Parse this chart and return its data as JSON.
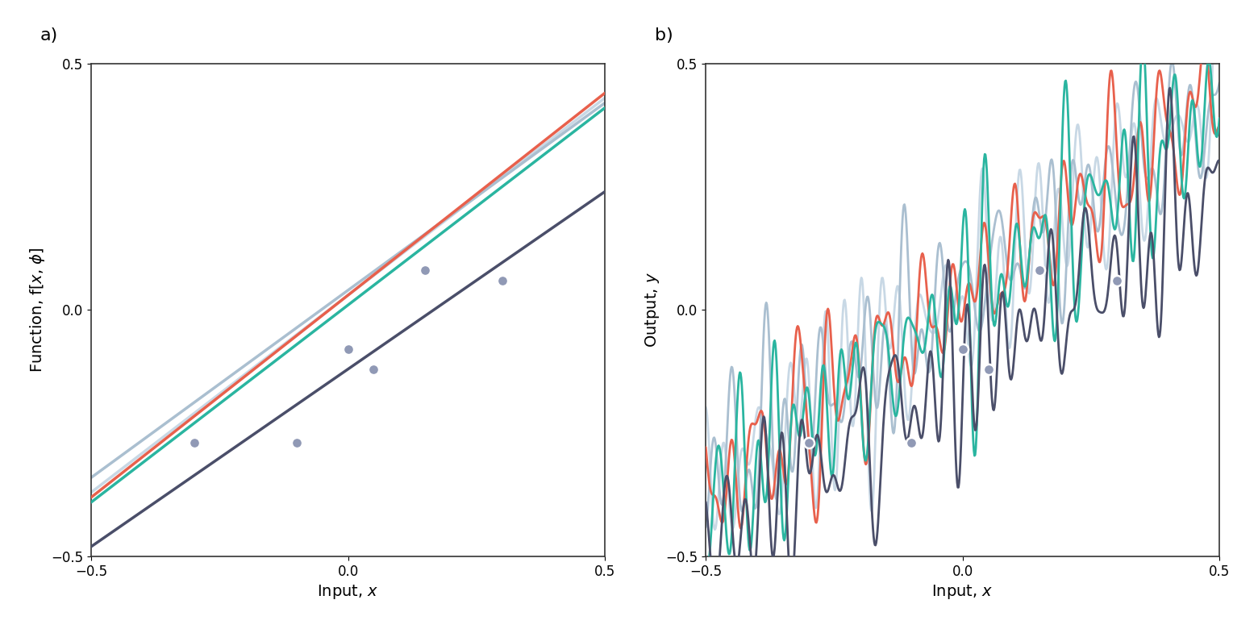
{
  "x_obs": [
    -0.3,
    -0.1,
    0.0,
    0.05,
    0.15,
    0.3
  ],
  "y_obs": [
    -0.27,
    -0.27,
    -0.08,
    -0.12,
    0.08,
    0.06
  ],
  "xlim": [
    -0.5,
    0.5
  ],
  "ylim": [
    -0.5,
    0.5
  ],
  "xticks": [
    -0.5,
    0.0,
    0.5
  ],
  "yticks": [
    -0.5,
    0.0,
    0.5
  ],
  "xlabel": "Input, $x$",
  "ylabel_a": "Function, f[$x$, $\\phi$]",
  "ylabel_b": "Output, $y$",
  "label_a": "a)",
  "label_b": "b)",
  "a_lines": [
    {
      "slope": 0.76,
      "intercept": 0.04,
      "color": "#aabfd0",
      "lw": 2.5,
      "zorder": 2
    },
    {
      "slope": 0.8,
      "intercept": 0.03,
      "color": "#c8d8e5",
      "lw": 2.5,
      "zorder": 1
    },
    {
      "slope": 0.82,
      "intercept": 0.03,
      "color": "#e8604c",
      "lw": 2.5,
      "zorder": 3
    },
    {
      "slope": 0.8,
      "intercept": 0.01,
      "color": "#2ab5a0",
      "lw": 2.5,
      "zorder": 3
    },
    {
      "slope": 0.72,
      "intercept": -0.12,
      "color": "#4a4e69",
      "lw": 2.5,
      "zorder": 3
    }
  ],
  "b_lines": [
    {
      "slope": 0.76,
      "intercept": 0.04,
      "color": "#aabfd0",
      "lw": 2.0,
      "zorder": 2,
      "seed": 11
    },
    {
      "slope": 0.8,
      "intercept": 0.03,
      "color": "#c8d8e5",
      "lw": 2.0,
      "zorder": 1,
      "seed": 22
    },
    {
      "slope": 0.82,
      "intercept": 0.03,
      "color": "#e8604c",
      "lw": 2.0,
      "zorder": 3,
      "seed": 33
    },
    {
      "slope": 0.8,
      "intercept": 0.01,
      "color": "#2ab5a0",
      "lw": 2.0,
      "zorder": 3,
      "seed": 44
    },
    {
      "slope": 0.72,
      "intercept": -0.12,
      "color": "#4a4e69",
      "lw": 2.0,
      "zorder": 3,
      "seed": 55
    }
  ],
  "wiggly_freq": 22,
  "wiggly_amp": 0.06,
  "wiggly_n_components": 8,
  "obs_color": "#9099b5",
  "obs_size": 90,
  "obs_edgecolor": "white",
  "obs_linewidth": 1.8,
  "background_color": "#ffffff",
  "figsize": [
    15.6,
    7.8
  ],
  "dpi": 100,
  "spine_color": "#333333",
  "spine_lw": 1.2,
  "tick_fontsize": 12,
  "label_fontsize": 14,
  "panel_label_fontsize": 16
}
